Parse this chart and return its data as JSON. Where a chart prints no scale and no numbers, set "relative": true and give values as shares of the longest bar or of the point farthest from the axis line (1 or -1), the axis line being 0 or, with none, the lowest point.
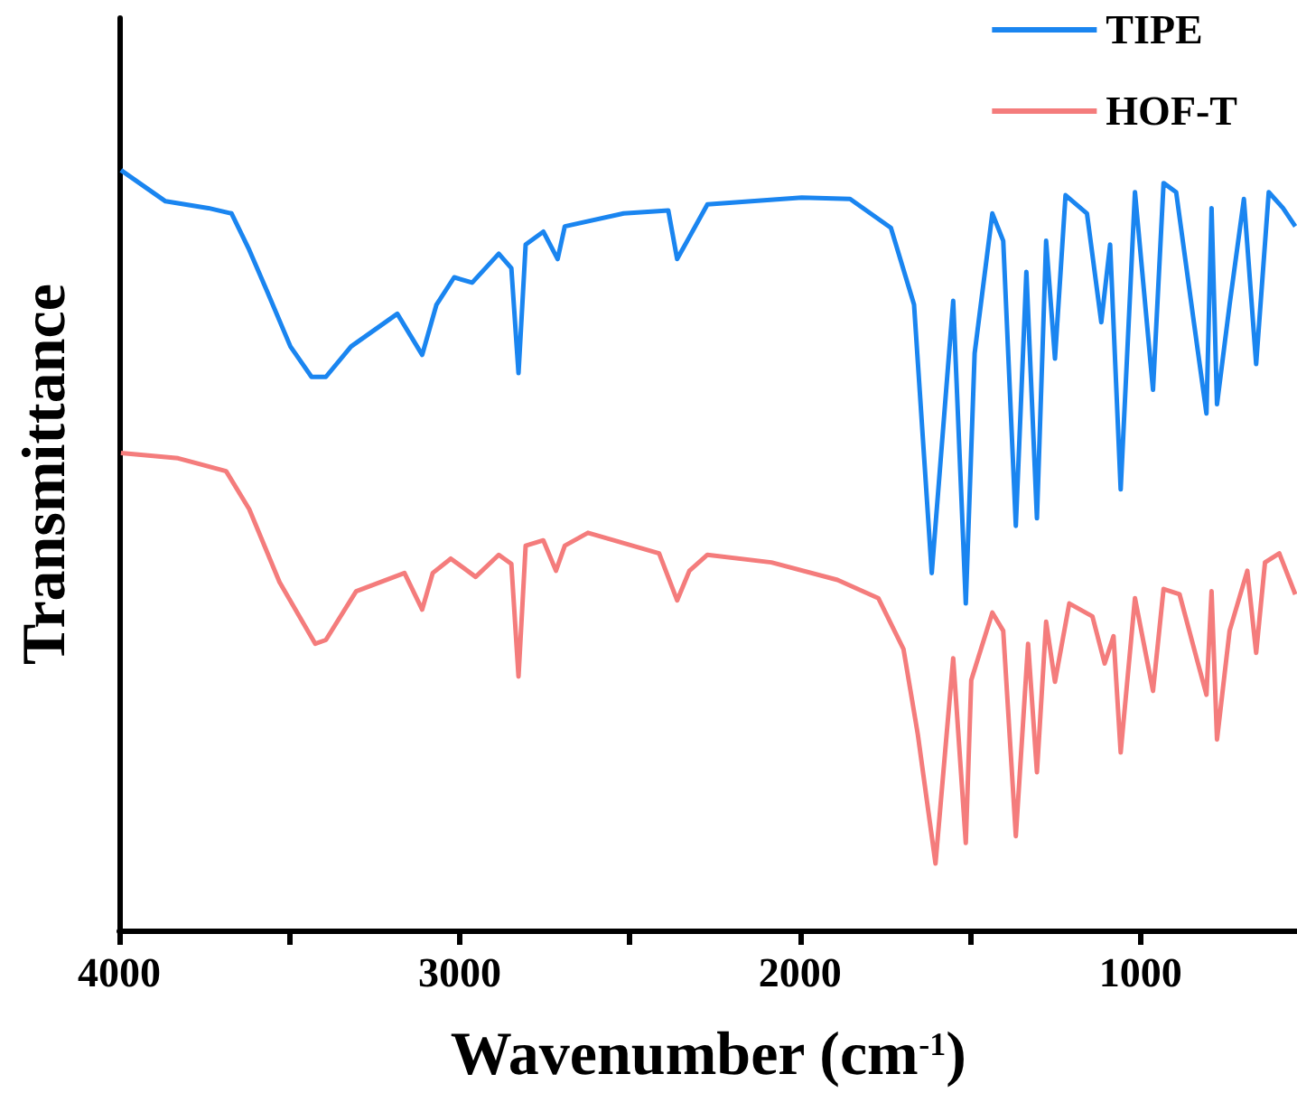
{
  "chart_data": {
    "type": "line",
    "xlabel": "Wavenumber (cm$^{-1}$)",
    "ylabel": "Transmittance",
    "relative": true,
    "legend": "top right",
    "xlim": [
      4000,
      540
    ],
    "xticks": [
      4000,
      {
        "value": 3500,
        "label": null
      },
      3000,
      {
        "value": 2500,
        "label": null
      },
      2000,
      {
        "value": 1500,
        "label": null
      },
      1000
    ],
    "series": [
      {
        "name": "TIPE",
        "color": "#1a85f0",
        "x": [
          3995,
          3864,
          3738,
          3670,
          3618,
          3565,
          3497,
          3435,
          3393,
          3319,
          3183,
          3110,
          3068,
          3016,
          2963,
          2885,
          2848,
          2827,
          2806,
          2754,
          2712,
          2691,
          2518,
          2387,
          2361,
          2325,
          2272,
          1995,
          1853,
          1733,
          1665,
          1613,
          1550,
          1513,
          1487,
          1435,
          1403,
          1366,
          1335,
          1304,
          1277,
          1251,
          1220,
          1157,
          1115,
          1089,
          1058,
          1016,
          963,
          932,
          895,
          843,
          806,
          791,
          775,
          738,
          696,
          660,
          623,
          581,
          545
        ],
        "values": [
          1.0,
          0.959,
          0.95,
          0.943,
          0.895,
          0.84,
          0.768,
          0.728,
          0.728,
          0.768,
          0.811,
          0.757,
          0.823,
          0.859,
          0.852,
          0.89,
          0.871,
          0.733,
          0.902,
          0.919,
          0.883,
          0.926,
          0.943,
          0.947,
          0.883,
          0.912,
          0.955,
          0.964,
          0.962,
          0.924,
          0.823,
          0.47,
          0.828,
          0.43,
          0.759,
          0.943,
          0.907,
          0.532,
          0.866,
          0.542,
          0.907,
          0.752,
          0.967,
          0.943,
          0.8,
          0.902,
          0.58,
          0.971,
          0.711,
          0.983,
          0.971,
          0.8,
          0.68,
          0.95,
          0.692,
          0.823,
          0.962,
          0.745,
          0.971,
          0.95,
          0.926
        ]
      },
      {
        "name": "HOF-T",
        "color": "#f47c7c",
        "x": [
          3995,
          3827,
          3686,
          3618,
          3529,
          3424,
          3393,
          3304,
          3162,
          3110,
          3079,
          3026,
          2953,
          2885,
          2848,
          2827,
          2806,
          2754,
          2717,
          2691,
          2623,
          2414,
          2361,
          2325,
          2272,
          2084,
          1890,
          1770,
          1696,
          1654,
          1602,
          1550,
          1513,
          1497,
          1435,
          1403,
          1366,
          1330,
          1304,
          1277,
          1251,
          1209,
          1141,
          1105,
          1079,
          1058,
          1016,
          963,
          932,
          885,
          832,
          806,
          791,
          775,
          738,
          686,
          660,
          634,
          592,
          545
        ],
        "values": [
          0.628,
          0.621,
          0.604,
          0.554,
          0.458,
          0.377,
          0.382,
          0.446,
          0.47,
          0.422,
          0.47,
          0.489,
          0.465,
          0.494,
          0.482,
          0.334,
          0.506,
          0.513,
          0.473,
          0.506,
          0.523,
          0.496,
          0.434,
          0.473,
          0.494,
          0.484,
          0.461,
          0.437,
          0.37,
          0.258,
          0.088,
          0.358,
          0.115,
          0.329,
          0.418,
          0.394,
          0.124,
          0.377,
          0.208,
          0.406,
          0.327,
          0.43,
          0.413,
          0.351,
          0.387,
          0.234,
          0.437,
          0.315,
          0.449,
          0.442,
          0.353,
          0.31,
          0.446,
          0.251,
          0.394,
          0.473,
          0.365,
          0.484,
          0.496,
          0.442
        ]
      }
    ]
  }
}
